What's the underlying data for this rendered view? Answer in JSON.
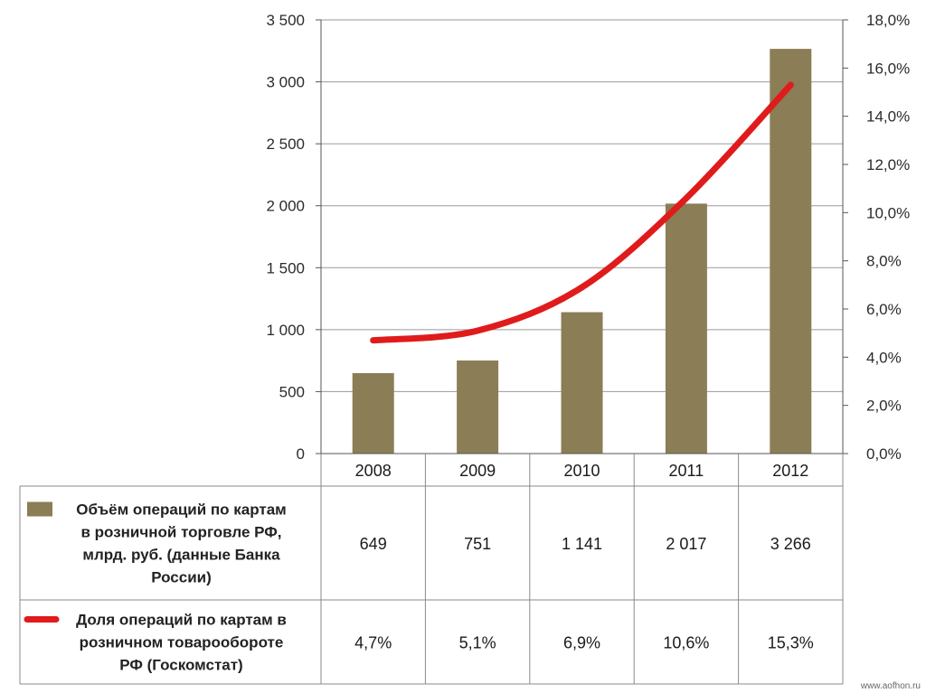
{
  "watermark": "www.aofhon.ru",
  "chart_data": {
    "type": "bar",
    "categories": [
      "2008",
      "2009",
      "2010",
      "2011",
      "2012"
    ],
    "y_left": {
      "ylim": [
        0,
        3500
      ],
      "ticks": [
        0,
        500,
        1000,
        1500,
        2000,
        2500,
        3000,
        3500
      ],
      "tick_labels": [
        "0",
        "500",
        "1 000",
        "1 500",
        "2 000",
        "2 500",
        "3 000",
        "3 500"
      ]
    },
    "y_right": {
      "ylim": [
        0,
        18
      ],
      "ticks": [
        0,
        2,
        4,
        6,
        8,
        10,
        12,
        14,
        16,
        18
      ],
      "tick_labels": [
        "0,0%",
        "2,0%",
        "4,0%",
        "6,0%",
        "8,0%",
        "10,0%",
        "12,0%",
        "14,0%",
        "16,0%",
        "18,0%"
      ]
    },
    "grid": true,
    "series": [
      {
        "name": "Объём операций по картам в розничной торговле РФ, млрд. руб. (данные Банка России)",
        "legend_lines": [
          "Объём операций по картам",
          "в розничной торговле РФ,",
          "млрд. руб. (данные Банка",
          "России)"
        ],
        "type": "bar",
        "axis": "left",
        "color": "#8b7d55",
        "values": [
          649,
          751,
          1141,
          2017,
          3266
        ],
        "value_labels": [
          "649",
          "751",
          "1 141",
          "2 017",
          "3 266"
        ]
      },
      {
        "name": "Доля операций по картам в розничном товарообороте РФ (Госкомстат)",
        "legend_lines": [
          "Доля операций по картам в",
          "розничном товарообороте",
          "РФ (Госкомстат)"
        ],
        "type": "line",
        "axis": "right",
        "color": "#e01b1b",
        "values": [
          4.7,
          5.1,
          6.9,
          10.6,
          15.3
        ],
        "value_labels": [
          "4,7%",
          "5,1%",
          "6,9%",
          "10,6%",
          "15,3%"
        ]
      }
    ],
    "legend": "data-table-below"
  }
}
